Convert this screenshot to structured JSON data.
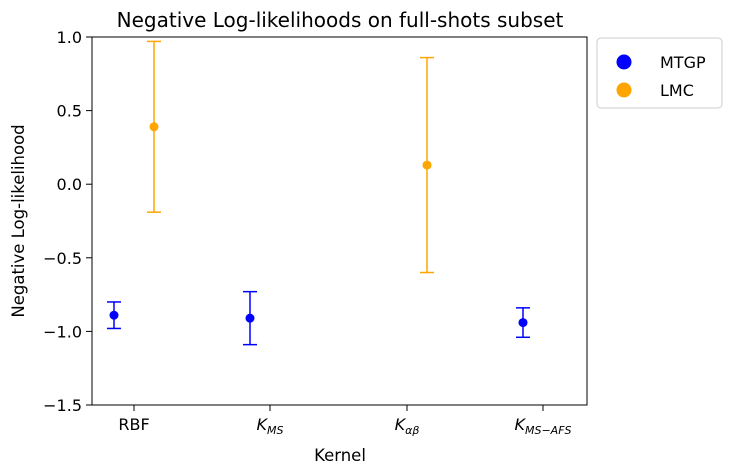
{
  "chart_data": {
    "type": "scatter",
    "title": "Negative Log-likelihoods on full-shots subset",
    "xlabel": "Kernel",
    "ylabel": "Negative Log-likelihood",
    "categories": [
      "RBF",
      "K_MS",
      "K_αβ",
      "K_MS−AFS"
    ],
    "category_labels": [
      {
        "base": "RBF",
        "sub": ""
      },
      {
        "base": "K",
        "sub": "MS"
      },
      {
        "base": "K",
        "sub": "αβ"
      },
      {
        "base": "K",
        "sub": "MS−AFS"
      }
    ],
    "ylim": [
      -1.5,
      1.0
    ],
    "yticks": [
      -1.5,
      -1.0,
      -0.5,
      0.0,
      0.5,
      1.0
    ],
    "ytick_labels": [
      "−1.5",
      "−1.0",
      "−0.5",
      "0.0",
      "0.5",
      "1.0"
    ],
    "grid": false,
    "legend_position": "outside-top-right",
    "series": [
      {
        "name": "MTGP",
        "color": "#0000ff",
        "points": [
          {
            "category": "RBF",
            "y": -0.89,
            "err_low": -0.98,
            "err_high": -0.8
          },
          {
            "category": "K_MS",
            "y": -0.91,
            "err_low": -1.09,
            "err_high": -0.73
          },
          {
            "category": "K_MS−AFS",
            "y": -0.94,
            "err_low": -1.04,
            "err_high": -0.84
          }
        ]
      },
      {
        "name": "LMC",
        "color": "#ffa500",
        "points": [
          {
            "category": "RBF",
            "y": 0.39,
            "err_low": -0.19,
            "err_high": 0.97
          },
          {
            "category": "K_αβ",
            "y": 0.13,
            "err_low": -0.6,
            "err_high": 0.86
          }
        ]
      }
    ]
  }
}
